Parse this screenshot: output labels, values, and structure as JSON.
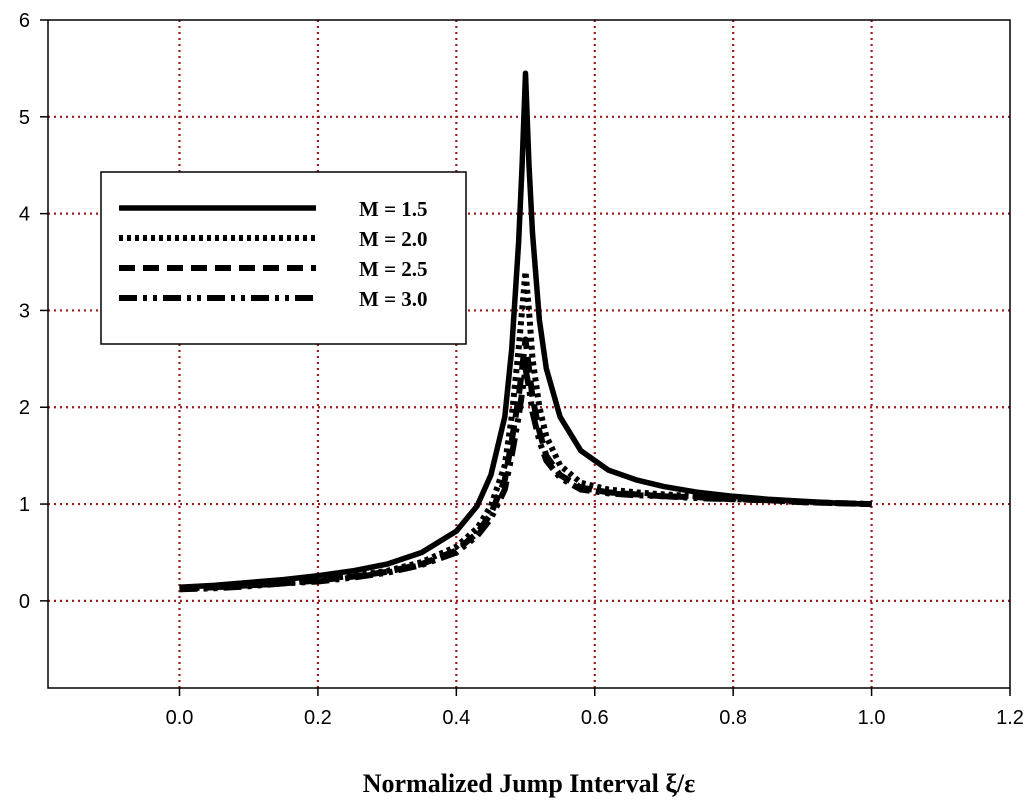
{
  "chart_data": {
    "type": "line",
    "title": "",
    "xlabel": "Normalized Jump Interval ξ/ε",
    "ylabel": "",
    "xlim": [
      -0.19,
      1.2
    ],
    "ylim": [
      -0.9,
      6
    ],
    "xticks": [
      "0.0",
      "0.2",
      "0.4",
      "0.6",
      "0.8",
      "1.0",
      "1.2"
    ],
    "yticks": [
      "0",
      "1",
      "2",
      "3",
      "4",
      "5",
      "6"
    ],
    "grid": true,
    "grid_color": "#9b1b1b",
    "line_color": "#000000",
    "legend_position": "upper-left",
    "series": [
      {
        "name": "M = 1.5",
        "style": "solid",
        "x": [
          0.0,
          0.05,
          0.1,
          0.15,
          0.2,
          0.25,
          0.3,
          0.35,
          0.4,
          0.43,
          0.45,
          0.47,
          0.48,
          0.49,
          0.495,
          0.5,
          0.505,
          0.51,
          0.52,
          0.53,
          0.55,
          0.58,
          0.62,
          0.66,
          0.7,
          0.75,
          0.8,
          0.85,
          0.9,
          0.95,
          1.0
        ],
        "y": [
          0.14,
          0.16,
          0.19,
          0.22,
          0.26,
          0.31,
          0.38,
          0.5,
          0.72,
          0.98,
          1.3,
          1.9,
          2.6,
          3.7,
          4.5,
          5.45,
          4.5,
          3.8,
          2.9,
          2.4,
          1.9,
          1.55,
          1.35,
          1.25,
          1.18,
          1.12,
          1.08,
          1.05,
          1.03,
          1.01,
          1.0
        ]
      },
      {
        "name": "M = 2.0",
        "style": "dotted",
        "x": [
          0.0,
          0.05,
          0.1,
          0.15,
          0.2,
          0.25,
          0.3,
          0.35,
          0.4,
          0.43,
          0.45,
          0.47,
          0.48,
          0.49,
          0.495,
          0.5,
          0.505,
          0.51,
          0.52,
          0.53,
          0.55,
          0.58,
          0.62,
          0.66,
          0.7,
          0.75,
          0.8,
          0.85,
          0.9,
          0.95,
          1.0
        ],
        "y": [
          0.13,
          0.14,
          0.16,
          0.19,
          0.22,
          0.26,
          0.31,
          0.4,
          0.56,
          0.75,
          0.98,
          1.4,
          1.9,
          2.6,
          3.0,
          3.4,
          3.0,
          2.5,
          2.0,
          1.7,
          1.4,
          1.22,
          1.15,
          1.12,
          1.1,
          1.08,
          1.06,
          1.04,
          1.02,
          1.01,
          1.0
        ]
      },
      {
        "name": "M = 2.5",
        "style": "dashed",
        "x": [
          0.0,
          0.05,
          0.1,
          0.15,
          0.2,
          0.25,
          0.3,
          0.35,
          0.4,
          0.43,
          0.45,
          0.47,
          0.48,
          0.49,
          0.495,
          0.5,
          0.505,
          0.51,
          0.52,
          0.53,
          0.55,
          0.58,
          0.62,
          0.66,
          0.7,
          0.75,
          0.8,
          0.85,
          0.9,
          0.95,
          1.0
        ],
        "y": [
          0.12,
          0.14,
          0.16,
          0.18,
          0.21,
          0.25,
          0.3,
          0.38,
          0.52,
          0.7,
          0.9,
          1.25,
          1.65,
          2.1,
          2.4,
          2.7,
          2.4,
          2.1,
          1.75,
          1.5,
          1.3,
          1.17,
          1.12,
          1.1,
          1.08,
          1.07,
          1.05,
          1.04,
          1.02,
          1.01,
          1.0
        ]
      },
      {
        "name": "M = 3.0",
        "style": "dashdot",
        "x": [
          0.0,
          0.05,
          0.1,
          0.15,
          0.2,
          0.25,
          0.3,
          0.35,
          0.4,
          0.43,
          0.45,
          0.47,
          0.48,
          0.49,
          0.495,
          0.5,
          0.505,
          0.51,
          0.52,
          0.53,
          0.55,
          0.58,
          0.62,
          0.66,
          0.7,
          0.75,
          0.8,
          0.85,
          0.9,
          0.95,
          1.0
        ],
        "y": [
          0.12,
          0.13,
          0.15,
          0.18,
          0.2,
          0.24,
          0.29,
          0.37,
          0.5,
          0.67,
          0.85,
          1.15,
          1.5,
          1.9,
          2.15,
          2.4,
          2.2,
          1.95,
          1.65,
          1.45,
          1.27,
          1.15,
          1.11,
          1.09,
          1.08,
          1.06,
          1.05,
          1.04,
          1.02,
          1.01,
          1.0
        ]
      }
    ]
  }
}
